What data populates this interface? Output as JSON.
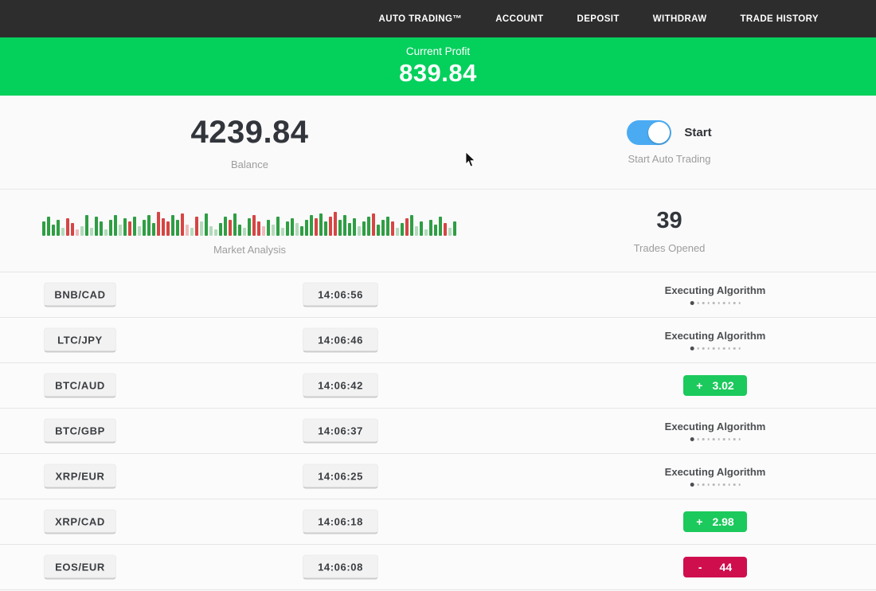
{
  "nav": {
    "items": [
      {
        "label": "AUTO TRADING™"
      },
      {
        "label": "ACCOUNT"
      },
      {
        "label": "DEPOSIT"
      },
      {
        "label": "WITHDRAW"
      },
      {
        "label": "TRADE HISTORY"
      }
    ]
  },
  "banner": {
    "label": "Current Profit",
    "value": "839.84"
  },
  "stats": {
    "balance": {
      "value": "4239.84",
      "label": "Balance"
    },
    "auto_trading": {
      "toggle_state": "on",
      "toggle_label": "Start",
      "label": "Start Auto Trading"
    },
    "market_analysis": {
      "label": "Market Analysis",
      "bars": [
        [
          18,
          "g"
        ],
        [
          24,
          "g"
        ],
        [
          14,
          "g"
        ],
        [
          20,
          "g"
        ],
        [
          10,
          "gl"
        ],
        [
          22,
          "r"
        ],
        [
          16,
          "r"
        ],
        [
          8,
          "rl"
        ],
        [
          12,
          "gl"
        ],
        [
          26,
          "g"
        ],
        [
          10,
          "gl"
        ],
        [
          24,
          "g"
        ],
        [
          18,
          "g"
        ],
        [
          8,
          "gl"
        ],
        [
          20,
          "g"
        ],
        [
          26,
          "g"
        ],
        [
          14,
          "gl"
        ],
        [
          22,
          "g"
        ],
        [
          18,
          "r"
        ],
        [
          24,
          "g"
        ],
        [
          12,
          "gl"
        ],
        [
          20,
          "g"
        ],
        [
          26,
          "g"
        ],
        [
          16,
          "g"
        ],
        [
          30,
          "r"
        ],
        [
          22,
          "r"
        ],
        [
          18,
          "r"
        ],
        [
          26,
          "g"
        ],
        [
          20,
          "g"
        ],
        [
          28,
          "r"
        ],
        [
          14,
          "rl"
        ],
        [
          10,
          "gl"
        ],
        [
          24,
          "r"
        ],
        [
          18,
          "gl"
        ],
        [
          28,
          "g"
        ],
        [
          12,
          "gl"
        ],
        [
          8,
          "gl"
        ],
        [
          16,
          "g"
        ],
        [
          24,
          "g"
        ],
        [
          20,
          "r"
        ],
        [
          28,
          "g"
        ],
        [
          14,
          "g"
        ],
        [
          10,
          "gl"
        ],
        [
          22,
          "g"
        ],
        [
          26,
          "r"
        ],
        [
          18,
          "r"
        ],
        [
          12,
          "rl"
        ],
        [
          20,
          "g"
        ],
        [
          14,
          "gl"
        ],
        [
          24,
          "g"
        ],
        [
          10,
          "gl"
        ],
        [
          18,
          "g"
        ],
        [
          22,
          "g"
        ],
        [
          16,
          "gl"
        ],
        [
          12,
          "g"
        ],
        [
          20,
          "g"
        ],
        [
          26,
          "g"
        ],
        [
          22,
          "r"
        ],
        [
          28,
          "g"
        ],
        [
          18,
          "g"
        ],
        [
          24,
          "r"
        ],
        [
          30,
          "r"
        ],
        [
          20,
          "g"
        ],
        [
          26,
          "g"
        ],
        [
          16,
          "g"
        ],
        [
          22,
          "g"
        ],
        [
          12,
          "gl"
        ],
        [
          18,
          "g"
        ],
        [
          24,
          "g"
        ],
        [
          28,
          "r"
        ],
        [
          14,
          "g"
        ],
        [
          20,
          "g"
        ],
        [
          24,
          "g"
        ],
        [
          18,
          "r"
        ],
        [
          10,
          "gl"
        ],
        [
          16,
          "g"
        ],
        [
          22,
          "r"
        ],
        [
          26,
          "g"
        ],
        [
          12,
          "gl"
        ],
        [
          18,
          "g"
        ],
        [
          8,
          "gl"
        ],
        [
          20,
          "g"
        ],
        [
          14,
          "g"
        ],
        [
          24,
          "g"
        ],
        [
          16,
          "r"
        ],
        [
          10,
          "gl"
        ],
        [
          18,
          "g"
        ]
      ]
    },
    "trades_opened": {
      "value": "39",
      "label": "Trades Opened"
    }
  },
  "trades": {
    "rows": [
      {
        "pair": "BNB/CAD",
        "time": "14:06:56",
        "status": {
          "type": "executing",
          "label": "Executing Algorithm"
        }
      },
      {
        "pair": "LTC/JPY",
        "time": "14:06:46",
        "status": {
          "type": "executing",
          "label": "Executing Algorithm"
        }
      },
      {
        "pair": "BTC/AUD",
        "time": "14:06:42",
        "status": {
          "type": "profit",
          "sign": "+",
          "value": "3.02"
        }
      },
      {
        "pair": "BTC/GBP",
        "time": "14:06:37",
        "status": {
          "type": "executing",
          "label": "Executing Algorithm"
        }
      },
      {
        "pair": "XRP/EUR",
        "time": "14:06:25",
        "status": {
          "type": "executing",
          "label": "Executing Algorithm"
        }
      },
      {
        "pair": "XRP/CAD",
        "time": "14:06:18",
        "status": {
          "type": "profit",
          "sign": "+",
          "value": "2.98"
        }
      },
      {
        "pair": "EOS/EUR",
        "time": "14:06:08",
        "status": {
          "type": "loss",
          "sign": "-",
          "value": "44"
        }
      }
    ]
  },
  "colors": {
    "banner_green": "#04d05c",
    "badge_green": "#1cc95c",
    "badge_red": "#cf0e4e",
    "toggle_blue": "#4aabf2",
    "navbar_dark": "#2e2d2d",
    "bar_green": "#2f9e44",
    "bar_red": "#d64545"
  }
}
